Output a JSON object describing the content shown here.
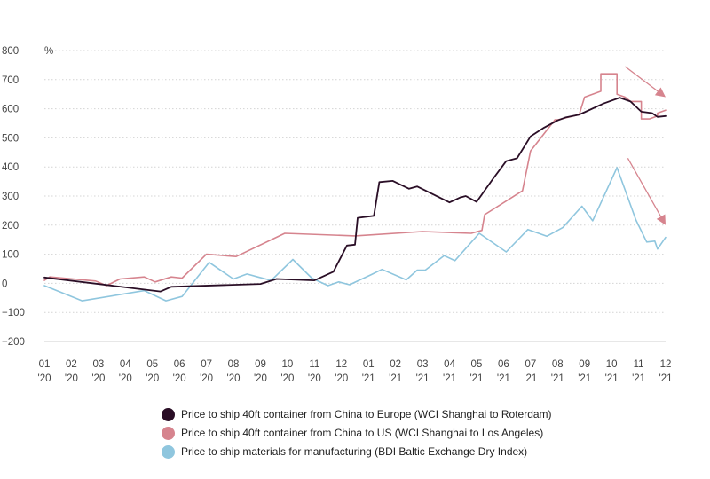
{
  "chart_data": {
    "type": "line",
    "ylabel": "%",
    "ylim": [
      -200,
      800
    ],
    "yticks": [
      -200,
      -100,
      0,
      100,
      200,
      300,
      400,
      500,
      600,
      700,
      800
    ],
    "xlim": [
      1,
      24
    ],
    "xtick_labels": [
      {
        "month": "01",
        "year": "'20"
      },
      {
        "month": "02",
        "year": "'20"
      },
      {
        "month": "03",
        "year": "'20"
      },
      {
        "month": "04",
        "year": "'20"
      },
      {
        "month": "05",
        "year": "'20"
      },
      {
        "month": "06",
        "year": "'20"
      },
      {
        "month": "07",
        "year": "'20"
      },
      {
        "month": "08",
        "year": "'20"
      },
      {
        "month": "09",
        "year": "'20"
      },
      {
        "month": "10",
        "year": "'20"
      },
      {
        "month": "11",
        "year": "'20"
      },
      {
        "month": "12",
        "year": "'20"
      },
      {
        "month": "01",
        "year": "'21"
      },
      {
        "month": "02",
        "year": "'21"
      },
      {
        "month": "03",
        "year": "'21"
      },
      {
        "month": "04",
        "year": "'21"
      },
      {
        "month": "05",
        "year": "'21"
      },
      {
        "month": "06",
        "year": "'21"
      },
      {
        "month": "07",
        "year": "'21"
      },
      {
        "month": "08",
        "year": "'21"
      },
      {
        "month": "09",
        "year": "'21"
      },
      {
        "month": "10",
        "year": "'21"
      },
      {
        "month": "11",
        "year": "'21"
      },
      {
        "month": "12",
        "year": "'21"
      }
    ],
    "grid": true,
    "legend_position": "bottom-center",
    "series": [
      {
        "name": "Price to ship 40ft container from China to Europe (WCI Shanghai to Roterdam)",
        "color": "#2a0e26",
        "points": [
          [
            1,
            20
          ],
          [
            5.3,
            -28
          ],
          [
            5.7,
            -12
          ],
          [
            9,
            -2
          ],
          [
            9.6,
            15
          ],
          [
            11,
            10
          ],
          [
            11.7,
            40
          ],
          [
            12.2,
            130
          ],
          [
            12.5,
            133
          ],
          [
            12.6,
            225
          ],
          [
            13.2,
            232
          ],
          [
            13.4,
            348
          ],
          [
            13.9,
            352
          ],
          [
            14.5,
            325
          ],
          [
            14.8,
            333
          ],
          [
            16,
            278
          ],
          [
            16.4,
            295
          ],
          [
            16.6,
            300
          ],
          [
            17,
            280
          ],
          [
            17.6,
            358
          ],
          [
            18.1,
            420
          ],
          [
            18.5,
            430
          ],
          [
            19,
            505
          ],
          [
            19.5,
            535
          ],
          [
            20,
            560
          ],
          [
            20.3,
            570
          ],
          [
            20.8,
            580
          ],
          [
            21,
            588
          ],
          [
            21.7,
            618
          ],
          [
            22.3,
            638
          ],
          [
            22.7,
            625
          ],
          [
            23.1,
            590
          ],
          [
            23.5,
            585
          ],
          [
            23.7,
            572
          ],
          [
            24,
            575
          ]
        ]
      },
      {
        "name": "Price to ship 40ft container from China to US (WCI Shanghai to Los Angeles)",
        "color": "#d6848e",
        "points": [
          [
            1,
            10
          ],
          [
            1.2,
            22
          ],
          [
            2.9,
            8
          ],
          [
            3.3,
            -8
          ],
          [
            3.8,
            15
          ],
          [
            4.7,
            22
          ],
          [
            5.1,
            5
          ],
          [
            5.7,
            22
          ],
          [
            6.1,
            18
          ],
          [
            7,
            100
          ],
          [
            8.1,
            92
          ],
          [
            9.9,
            172
          ],
          [
            12.5,
            163
          ],
          [
            15,
            178
          ],
          [
            16.8,
            172
          ],
          [
            17.2,
            182
          ],
          [
            17.3,
            236
          ],
          [
            18.7,
            318
          ],
          [
            19,
            455
          ],
          [
            19.9,
            562
          ],
          [
            20,
            562
          ],
          [
            20.8,
            580
          ],
          [
            21,
            640
          ],
          [
            21.6,
            660
          ],
          [
            21.6,
            720
          ],
          [
            22.2,
            720
          ],
          [
            22.2,
            650
          ],
          [
            22.5,
            640
          ],
          [
            22.7,
            625
          ],
          [
            23.1,
            625
          ],
          [
            23.1,
            565
          ],
          [
            23.4,
            565
          ],
          [
            23.7,
            575
          ],
          [
            23.7,
            585
          ],
          [
            24,
            595
          ]
        ]
      },
      {
        "name": "Price to ship materials for manufacturing (BDI Baltic Exchange Dry Index)",
        "color": "#8fc6de",
        "points": [
          [
            1,
            -8
          ],
          [
            2.4,
            -60
          ],
          [
            4.7,
            -25
          ],
          [
            5.5,
            -60
          ],
          [
            6.1,
            -45
          ],
          [
            7.1,
            72
          ],
          [
            8,
            15
          ],
          [
            8.5,
            32
          ],
          [
            8.9,
            22
          ],
          [
            9.4,
            10
          ],
          [
            10.2,
            82
          ],
          [
            10.9,
            18
          ],
          [
            11.5,
            -8
          ],
          [
            11.9,
            5
          ],
          [
            12.3,
            -5
          ],
          [
            13.1,
            30
          ],
          [
            13.5,
            48
          ],
          [
            14.4,
            12
          ],
          [
            14.8,
            45
          ],
          [
            15.1,
            45
          ],
          [
            15.8,
            95
          ],
          [
            16.2,
            78
          ],
          [
            17.1,
            172
          ],
          [
            18.1,
            108
          ],
          [
            18.9,
            185
          ],
          [
            19.6,
            162
          ],
          [
            20.2,
            192
          ],
          [
            20.9,
            265
          ],
          [
            21.3,
            215
          ],
          [
            22.2,
            398
          ],
          [
            22.9,
            218
          ],
          [
            23.3,
            142
          ],
          [
            23.6,
            145
          ],
          [
            23.7,
            118
          ],
          [
            24,
            158
          ]
        ]
      }
    ],
    "annotations": [
      {
        "type": "arrow",
        "color": "#d6848e",
        "from": [
          22.5,
          745
        ],
        "to": [
          24,
          640
        ]
      },
      {
        "type": "arrow",
        "color": "#d6848e",
        "from": [
          22.6,
          430
        ],
        "to": [
          24,
          200
        ]
      }
    ]
  }
}
